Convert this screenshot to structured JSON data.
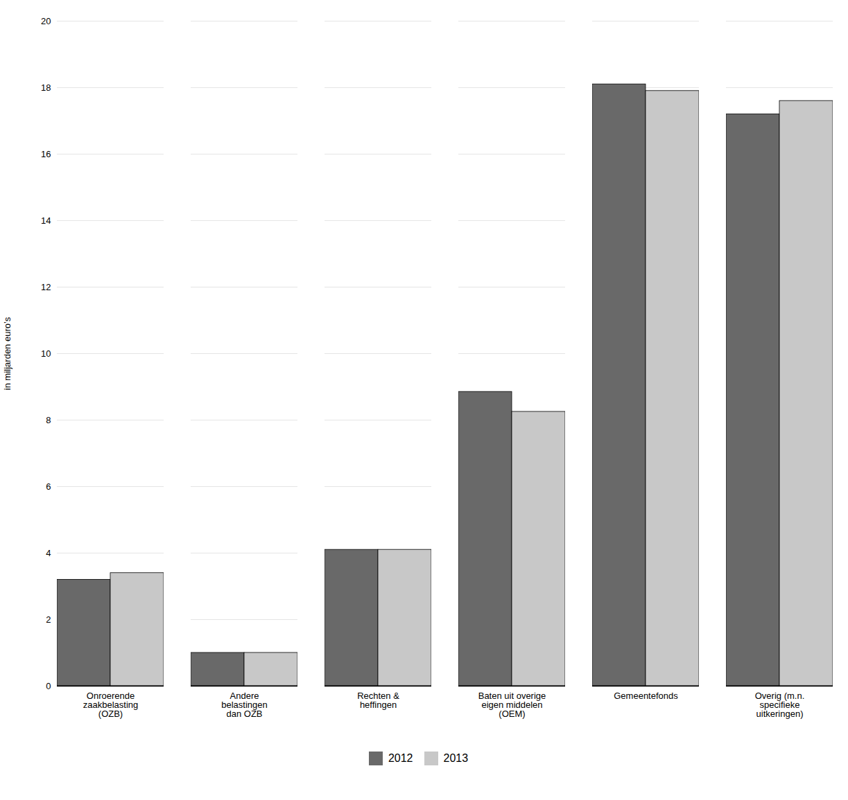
{
  "chart_data": {
    "type": "bar",
    "categories": [
      "Onroerende\nzaakbelasting\n(OZB)",
      "Andere\nbelastingen\ndan OZB",
      "Rechten &\nheffingen",
      "Baten uit overige\neigen middelen\n(OEM)",
      "Gemeentefonds",
      "Overig (m.n.\nspecifieke\nuitkeringen)"
    ],
    "series": [
      {
        "name": "2012",
        "color": "#696969",
        "values": [
          3.2,
          1.0,
          4.1,
          8.85,
          18.1,
          17.2
        ]
      },
      {
        "name": "2013",
        "color": "#c8c8c8",
        "values": [
          3.4,
          1.0,
          4.1,
          8.25,
          17.9,
          17.6
        ]
      }
    ],
    "ylabel": "in miljarden euro’s",
    "ylim": [
      0,
      20
    ],
    "yticks": [
      0,
      2,
      4,
      6,
      8,
      10,
      12,
      14,
      16,
      18,
      20
    ],
    "grid": true,
    "legend": "bottom"
  }
}
